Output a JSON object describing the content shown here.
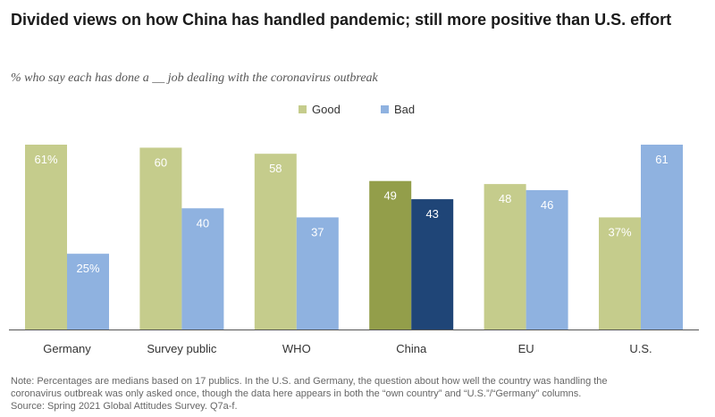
{
  "title": "Divided views on how China has handled pandemic; still more positive than U.S. effort",
  "subtitle": "% who say each has done a __ job dealing with the coronavirus outbreak",
  "legend": {
    "good_label": "Good",
    "bad_label": "Bad"
  },
  "colors": {
    "good": "#c5cc8c",
    "bad": "#8fb2e0",
    "good_highlight": "#939e4a",
    "bad_highlight": "#1f4577",
    "label_text": "#ffffff",
    "axis": "#555555"
  },
  "chart_data": {
    "type": "bar",
    "categories": [
      "Germany",
      "Survey public",
      "WHO",
      "China",
      "EU",
      "U.S."
    ],
    "highlight_category": "China",
    "series": [
      {
        "name": "Good",
        "values": [
          61,
          60,
          58,
          49,
          48,
          37
        ],
        "labels": [
          "61%",
          "60",
          "58",
          "49",
          "48",
          "37%"
        ]
      },
      {
        "name": "Bad",
        "values": [
          25,
          40,
          37,
          43,
          46,
          61
        ],
        "labels": [
          "25%",
          "40",
          "37",
          "43",
          "46",
          "61"
        ]
      }
    ],
    "title": "Divided views on how China has handled pandemic; still more positive than U.S. effort",
    "xlabel": "",
    "ylabel": "",
    "ylim": [
      0,
      61
    ],
    "grid": false,
    "legend_position": "top-center"
  },
  "note": {
    "line1": "Note: Percentages are medians based on 17 publics. In the U.S. and Germany, the question about how well the country was handling the",
    "line2": "coronavirus outbreak was only asked once, though the data here appears in both the “own country” and “U.S.”/“Germany” columns.",
    "line3": "Source: Spring 2021 Global Attitudes Survey. Q7a-f."
  }
}
